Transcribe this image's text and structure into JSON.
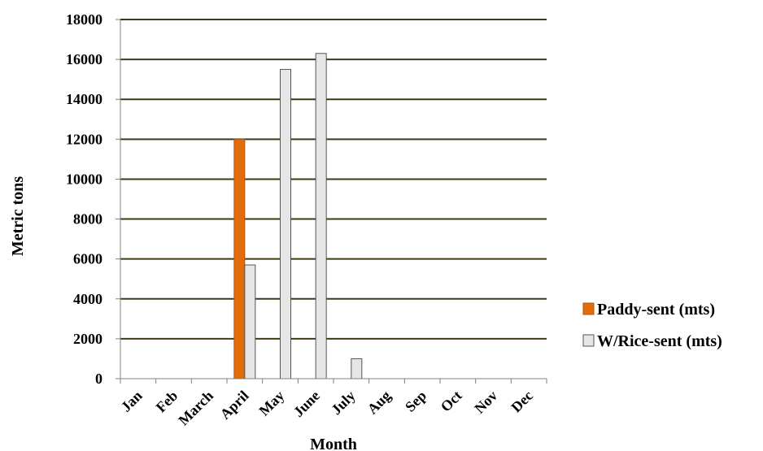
{
  "chart_data": {
    "type": "bar",
    "title": "",
    "xlabel": "Month",
    "ylabel": "Metric tons",
    "ylim": [
      0,
      18000
    ],
    "yticks": [
      0,
      2000,
      4000,
      6000,
      8000,
      10000,
      12000,
      14000,
      16000,
      18000
    ],
    "categories": [
      "Jan",
      "Feb",
      "March",
      "April",
      "May",
      "June",
      "July",
      "Aug",
      "Sep",
      "Oct",
      "Nov",
      "Dec"
    ],
    "series": [
      {
        "name": "Paddy-sent (mts)",
        "color": "#e36c0a",
        "values": [
          0,
          0,
          0,
          12000,
          0,
          0,
          0,
          0,
          0,
          0,
          0,
          0
        ]
      },
      {
        "name": "W/Rice-sent (mts)",
        "color": "#e6e6e6",
        "values": [
          0,
          0,
          0,
          5700,
          15500,
          16300,
          1000,
          0,
          0,
          0,
          0,
          0
        ]
      }
    ],
    "grid": true,
    "legend_position": "right"
  }
}
